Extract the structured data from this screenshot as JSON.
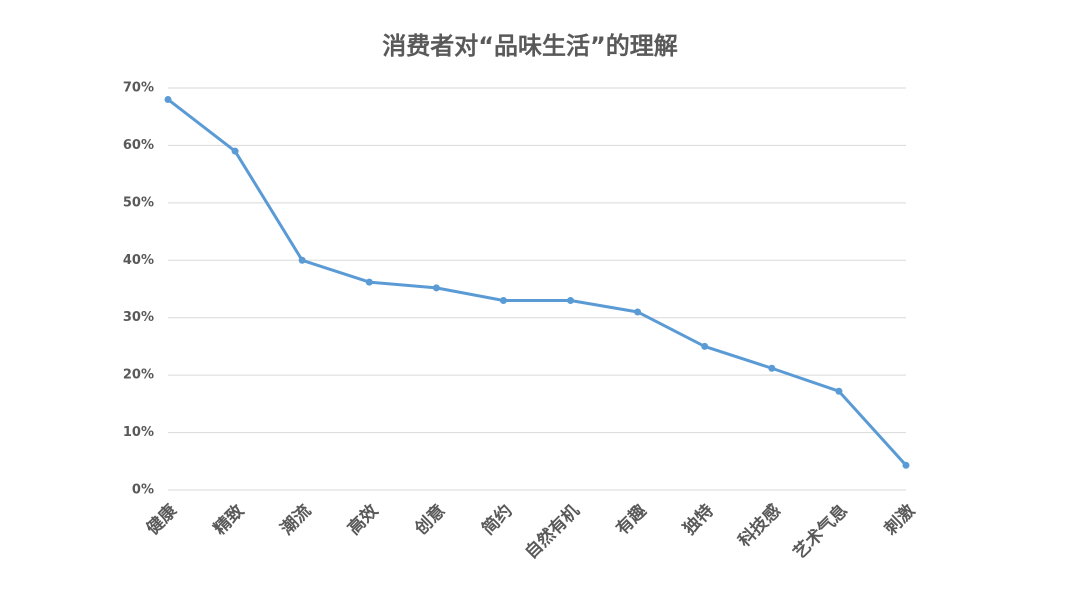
{
  "chart_data": {
    "type": "line",
    "title": "消费者对“品味生活”的理解",
    "categories": [
      "健康",
      "精致",
      "潮流",
      "高效",
      "创意",
      "简约",
      "自然有机",
      "有趣",
      "独特",
      "科技感",
      "艺术气息",
      "刺激"
    ],
    "values": [
      68,
      59,
      40,
      36.2,
      35.2,
      33,
      33,
      31,
      25,
      21.2,
      17.2,
      4.3
    ],
    "color": "#5b9bd5",
    "ylim": [
      0,
      70
    ],
    "yticks": [
      {
        "value": 0,
        "label": "0%"
      },
      {
        "value": 10,
        "label": "10%"
      },
      {
        "value": 20,
        "label": "20%"
      },
      {
        "value": 30,
        "label": "30%"
      },
      {
        "value": 40,
        "label": "40%"
      },
      {
        "value": 50,
        "label": "50%"
      },
      {
        "value": 60,
        "label": "60%"
      },
      {
        "value": 70,
        "label": "70%"
      }
    ],
    "grid": true
  }
}
